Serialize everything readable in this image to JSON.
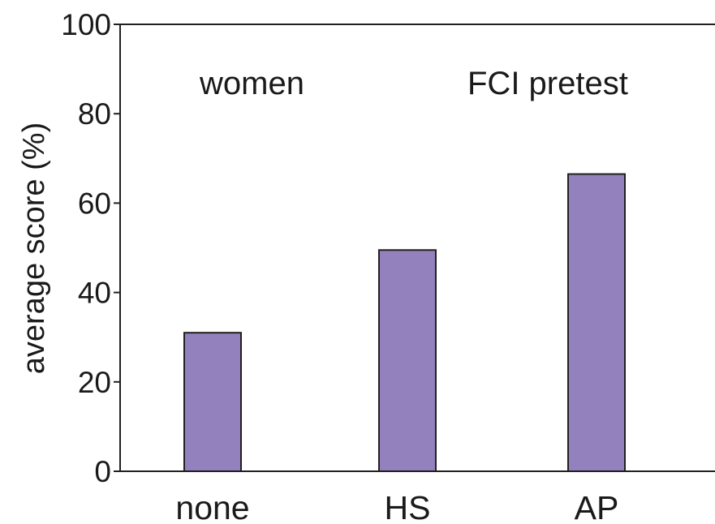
{
  "chart_data": {
    "type": "bar",
    "categories": [
      "none",
      "HS",
      "AP"
    ],
    "values": [
      31,
      49.5,
      66.5
    ],
    "title": "",
    "xlabel": "",
    "ylabel": "average score (%)",
    "ylim": [
      0,
      100
    ],
    "yticks": [
      "0",
      "20",
      "40",
      "60",
      "80",
      "100"
    ],
    "annotations": [
      "women",
      "FCI pretest"
    ],
    "grid": false,
    "legend": "none",
    "colors": {
      "bar_fill": "#9281bd",
      "bar_stroke": "#231f20",
      "axis": "#231f20"
    }
  }
}
